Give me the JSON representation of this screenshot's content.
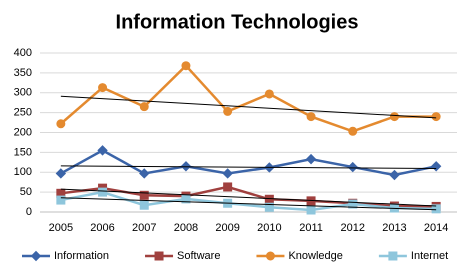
{
  "chart_data": {
    "type": "line",
    "title": "Information Technologies",
    "categories": [
      "2005",
      "2006",
      "2007",
      "2008",
      "2009",
      "2010",
      "2011",
      "2012",
      "2013",
      "2014"
    ],
    "series": [
      {
        "name": "Information",
        "color": "#3b64a8",
        "marker": "diamond",
        "values": [
          97,
          155,
          97,
          115,
          97,
          112,
          133,
          113,
          93,
          115
        ]
      },
      {
        "name": "Software",
        "color": "#a0403e",
        "marker": "square",
        "values": [
          47,
          60,
          42,
          40,
          63,
          32,
          28,
          22,
          15,
          14
        ]
      },
      {
        "name": "Knowledge",
        "color": "#e48a2f",
        "marker": "circle",
        "values": [
          222,
          313,
          265,
          368,
          253,
          297,
          240,
          203,
          240,
          240
        ]
      },
      {
        "name": "Internet",
        "color": "#8ec6dc",
        "marker": "square",
        "values": [
          30,
          50,
          17,
          33,
          22,
          12,
          5,
          20,
          10,
          8
        ]
      }
    ],
    "ylim": [
      0,
      400
    ],
    "yticks": [
      0,
      50,
      100,
      150,
      200,
      250,
      300,
      350,
      400
    ],
    "grid": true,
    "trendline": true,
    "legend": "bottom"
  }
}
